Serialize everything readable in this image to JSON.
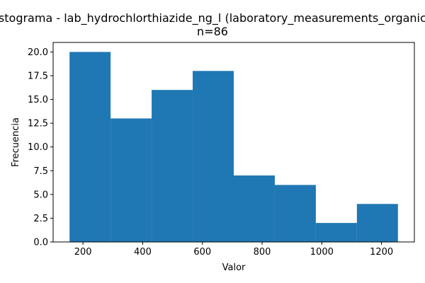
{
  "chart_data": {
    "type": "bar",
    "title": "Histograma - lab_hydrochlorthiazide_ng_l (laboratory_measurements_organic_c",
    "subtitle": "n=86",
    "xlabel": "Valor",
    "ylabel": "Frecuencia",
    "bins": [
      {
        "start": 155,
        "end": 292.5,
        "count": 20
      },
      {
        "start": 292.5,
        "end": 430,
        "count": 13
      },
      {
        "start": 430,
        "end": 567.5,
        "count": 16
      },
      {
        "start": 567.5,
        "end": 705,
        "count": 18
      },
      {
        "start": 705,
        "end": 842.5,
        "count": 7
      },
      {
        "start": 842.5,
        "end": 980,
        "count": 6
      },
      {
        "start": 980,
        "end": 1117.5,
        "count": 2
      },
      {
        "start": 1117.5,
        "end": 1255,
        "count": 4
      }
    ],
    "xlim": [
      100,
      1310
    ],
    "ylim": [
      0,
      21
    ],
    "xticks": [
      200,
      400,
      600,
      800,
      1000,
      1200
    ],
    "xtick_labels": [
      "200",
      "400",
      "600",
      "800",
      "1000",
      "1200"
    ],
    "yticks": [
      0,
      2.5,
      5,
      7.5,
      10,
      12.5,
      15,
      17.5,
      20
    ],
    "ytick_labels": [
      "0.0",
      "2.5",
      "5.0",
      "7.5",
      "10.0",
      "12.5",
      "15.0",
      "17.5",
      "20.0"
    ],
    "bar_color": "#1f77b4",
    "grid": false,
    "legend": false
  }
}
